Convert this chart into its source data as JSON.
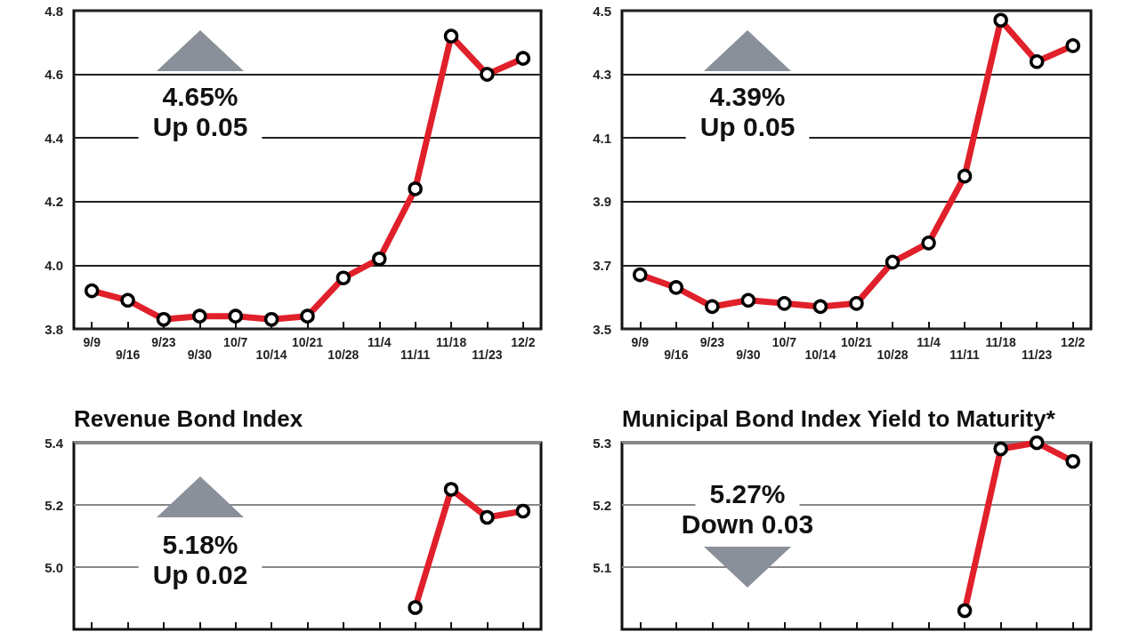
{
  "chart_data": [
    {
      "type": "line",
      "categories": [
        "9/9",
        "9/16",
        "9/23",
        "9/30",
        "10/7",
        "10/14",
        "10/21",
        "10/28",
        "11/4",
        "11/11",
        "11/18",
        "11/23",
        "12/2"
      ],
      "series": [
        {
          "color": "#e0202a",
          "values": [
            3.92,
            3.89,
            3.83,
            3.84,
            3.84,
            3.83,
            3.84,
            3.96,
            4.02,
            4.24,
            4.72,
            4.6,
            4.65
          ]
        }
      ],
      "ylim": [
        3.8,
        4.8
      ],
      "yticks": [
        3.8,
        {
          "value": 4,
          "label": "4.0"
        },
        4.2,
        4.4,
        4.6,
        4.8
      ],
      "grid": "y",
      "marker": "circle",
      "line_style": "solid",
      "annotations": [
        "4.65%",
        "Up 0.05"
      ]
    },
    {
      "type": "line",
      "categories": [
        "9/9",
        "9/16",
        "9/23",
        "9/30",
        "10/7",
        "10/14",
        "10/21",
        "10/28",
        "11/4",
        "11/11",
        "11/18",
        "11/23",
        "12/2"
      ],
      "series": [
        {
          "color": "#e0202a",
          "values": [
            3.67,
            3.63,
            3.57,
            3.59,
            3.58,
            3.57,
            3.58,
            3.71,
            3.77,
            3.98,
            4.47,
            4.34,
            4.39
          ]
        }
      ],
      "ylim": [
        3.5,
        4.5
      ],
      "yticks": [
        3.5,
        3.7,
        3.9,
        4.1,
        4.3,
        4.5
      ],
      "grid": "y",
      "marker": "circle",
      "line_style": "solid",
      "annotations": [
        "4.39%",
        "Up 0.05"
      ]
    },
    {
      "type": "line",
      "title": "Revenue Bond Index",
      "categories": [
        null,
        null,
        null,
        null,
        null,
        null,
        null,
        null,
        null,
        null,
        null,
        null,
        null
      ],
      "series": [
        {
          "color": "#e0202a",
          "values": [
            null,
            null,
            null,
            null,
            null,
            null,
            null,
            null,
            null,
            4.87,
            5.25,
            5.16,
            5.18
          ]
        }
      ],
      "ylim": [
        4.8,
        5.4
      ],
      "yticks": [
        {
          "value": 5,
          "label": "5.0"
        },
        5.2,
        5.4
      ],
      "grid": "y",
      "marker": "circle",
      "line_style": "solid",
      "tick_labels": "y",
      "annotations": [
        "5.18%",
        "Up 0.02"
      ]
    },
    {
      "type": "line",
      "title": "Municipal Bond Index Yield to Maturity*",
      "categories": [
        null,
        null,
        null,
        null,
        null,
        null,
        null,
        null,
        null,
        null,
        null,
        null,
        null
      ],
      "series": [
        {
          "color": "#e0202a",
          "values": [
            null,
            null,
            null,
            null,
            null,
            null,
            null,
            null,
            null,
            5.03,
            5.29,
            5.3,
            5.27
          ]
        }
      ],
      "ylim": [
        5.0,
        5.3
      ],
      "yticks": [
        5.1,
        5.2,
        5.3
      ],
      "grid": "y",
      "marker": "circle",
      "line_style": "solid",
      "tick_labels": "y",
      "annotations": [
        "5.27%",
        "Down 0.03"
      ]
    }
  ]
}
